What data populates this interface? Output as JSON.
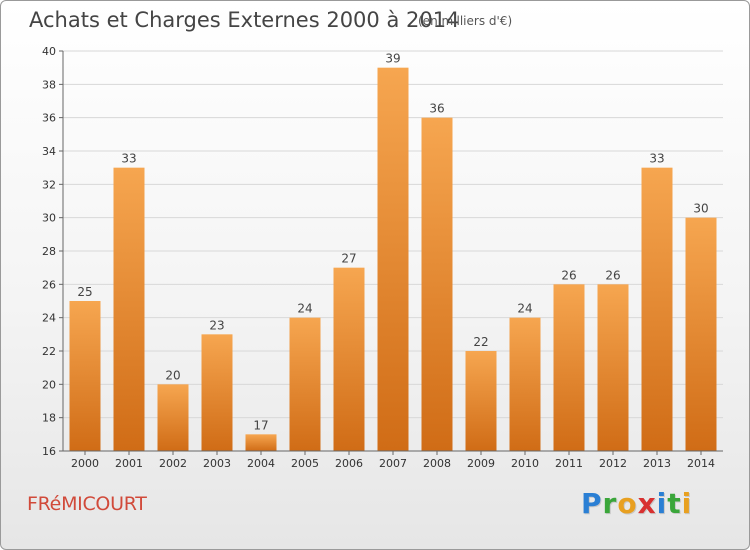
{
  "header": {
    "title": "Achats et Charges Externes 2000 à 2014",
    "unit": "(en milliers d'€)"
  },
  "footer": {
    "town": "FRéMICOURT",
    "logo": [
      {
        "char": "P",
        "color": "#2a7fd4"
      },
      {
        "char": "r",
        "color": "#3aa63a"
      },
      {
        "char": "o",
        "color": "#e8a020"
      },
      {
        "char": "x",
        "color": "#d83030"
      },
      {
        "char": "i",
        "color": "#2a7fd4"
      },
      {
        "char": "t",
        "color": "#3aa63a"
      },
      {
        "char": "i",
        "color": "#e8a020"
      }
    ]
  },
  "chart_data": {
    "type": "bar",
    "categories": [
      "2000",
      "2001",
      "2002",
      "2003",
      "2004",
      "2005",
      "2006",
      "2007",
      "2008",
      "2009",
      "2010",
      "2011",
      "2012",
      "2013",
      "2014"
    ],
    "values": [
      25,
      33,
      20,
      23,
      17,
      24,
      27,
      39,
      36,
      22,
      24,
      26,
      26,
      33,
      30
    ],
    "ylim": [
      16,
      40
    ],
    "yticks": [
      16,
      18,
      20,
      22,
      24,
      26,
      28,
      30,
      32,
      34,
      36,
      38,
      40
    ],
    "grid": true,
    "colors": {
      "bar_top": "#f6a650",
      "bar_bottom": "#d06c16",
      "grid": "#d8d8d8",
      "axis": "#666666"
    }
  }
}
